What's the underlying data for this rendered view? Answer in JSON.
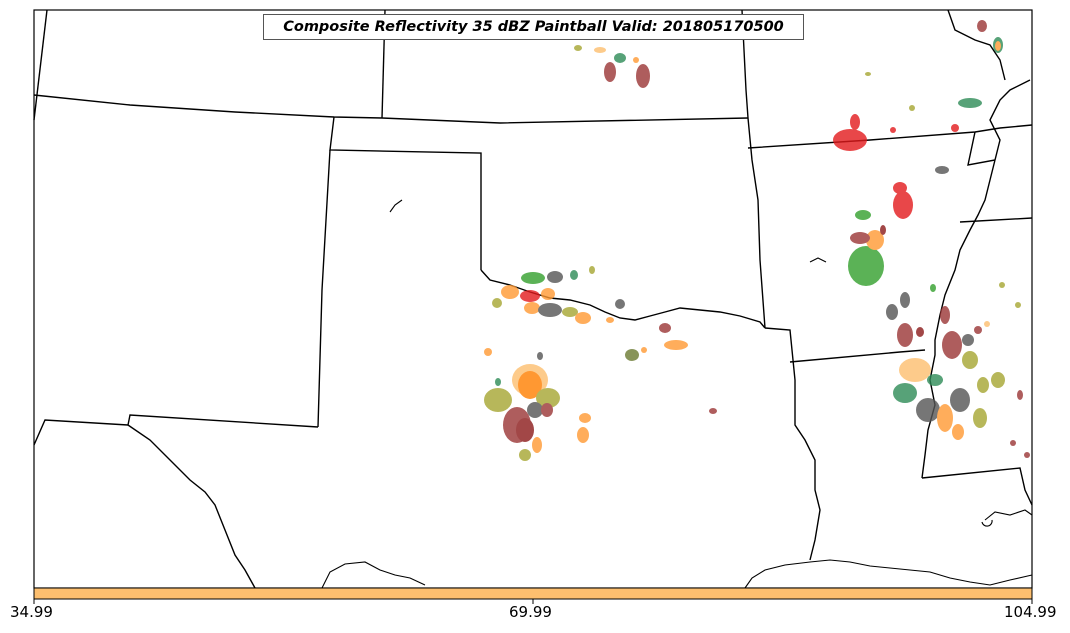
{
  "map": {
    "title": "Composite Reflectivity 35 dBZ Paintball Valid: 201805170500",
    "colorbar": {
      "color": "#fdbf6f",
      "tick_labels": [
        "34.99",
        "69.99",
        "104.99"
      ]
    },
    "member_colors": [
      "#e31a1c",
      "#33a02c",
      "#ff7f00",
      "#8b1a1a",
      "#a6a632",
      "#ff9933",
      "#555555",
      "#2e8b57",
      "#fdbf6f",
      "#9b3535"
    ]
  }
}
